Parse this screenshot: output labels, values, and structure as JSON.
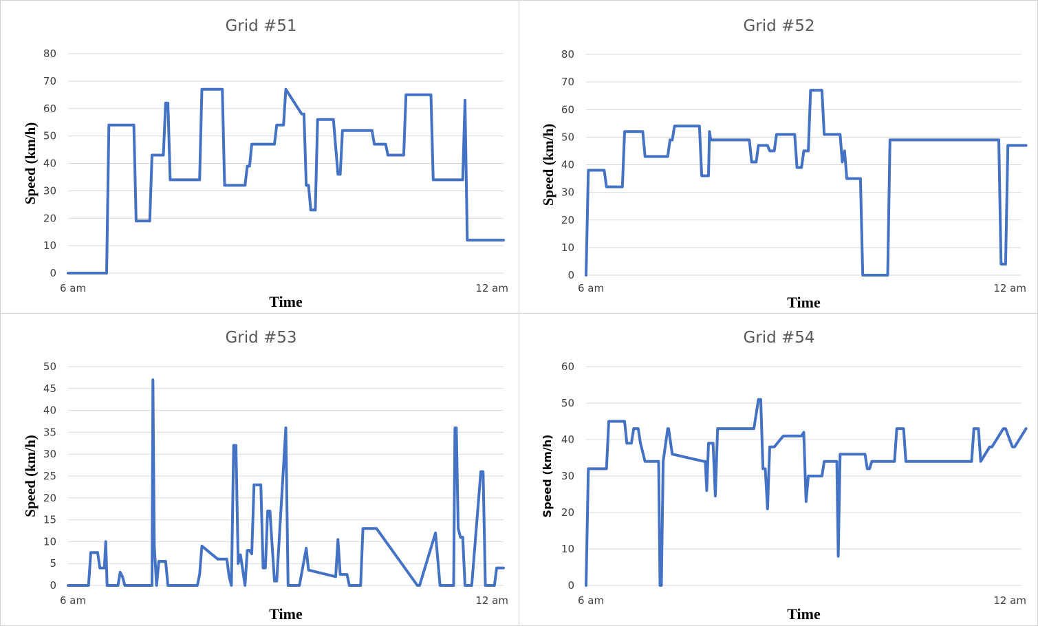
{
  "colors": {
    "series": "#4472C4",
    "grid": "#D9D9D9"
  },
  "chart_data": [
    {
      "type": "line",
      "title": "Grid #51",
      "xlabel": "Time",
      "ylabel": "Speed (km/h)",
      "ylim": [
        0,
        80
      ],
      "yticks": [
        0,
        10,
        20,
        30,
        40,
        50,
        60,
        70,
        80
      ],
      "xtick_labels": [
        "6 am",
        "12 am"
      ],
      "x": [
        0,
        8.5,
        9,
        14.5,
        15,
        18,
        18.5,
        21,
        21.5,
        22,
        22.5,
        23.5,
        24,
        29,
        29.5,
        34,
        34.5,
        39,
        39.5,
        40,
        40.5,
        41,
        41.5,
        45.5,
        46,
        47.5,
        48,
        51.5,
        52,
        52.5,
        53,
        53.5,
        54.5,
        55,
        58,
        58.5,
        59.5,
        60,
        60.5,
        67,
        67.5,
        70,
        70.5,
        74,
        74.5,
        80,
        80.5,
        87,
        87.5,
        88,
        88.5,
        91,
        91.5,
        94.5,
        95,
        96
      ],
      "y": [
        0,
        0,
        54,
        54,
        19,
        19,
        43,
        43,
        62,
        62,
        34,
        34,
        34,
        34,
        67,
        67,
        32,
        32,
        39,
        39,
        47,
        47,
        47,
        47,
        54,
        54,
        67,
        58,
        58,
        32,
        32,
        23,
        23,
        56,
        56,
        56,
        36,
        36,
        52,
        52,
        47,
        47,
        43,
        43,
        65,
        65,
        34,
        34,
        63,
        12,
        12,
        12,
        12,
        12,
        12,
        12
      ]
    },
    {
      "type": "line",
      "title": "Grid #52",
      "xlabel": "Time",
      "ylabel": "Speed (km/h)",
      "ylim": [
        0,
        80
      ],
      "yticks": [
        0,
        10,
        20,
        30,
        40,
        50,
        60,
        70,
        80
      ],
      "xtick_labels": [
        "6 am",
        "12 am"
      ],
      "x": [
        0,
        0.5,
        4,
        4.5,
        8,
        8.5,
        12.5,
        13,
        18,
        18.5,
        19,
        19.5,
        25,
        25.5,
        27,
        27.2,
        27.5,
        36,
        36.5,
        37.5,
        38,
        40,
        40.5,
        41.5,
        42,
        46,
        46.5,
        47.5,
        48,
        49,
        49.5,
        52,
        52.5,
        56,
        56.5,
        57,
        57.5,
        60.5,
        61,
        66,
        66.5,
        67,
        73.5,
        74,
        91,
        91.5,
        92.5,
        93,
        97
      ],
      "y": [
        0,
        38,
        38,
        32,
        32,
        52,
        52,
        43,
        43,
        49,
        49,
        54,
        54,
        36,
        36,
        52,
        49,
        49,
        41,
        41,
        47,
        47,
        45,
        45,
        51,
        51,
        39,
        39,
        45,
        45,
        67,
        67,
        51,
        51,
        41,
        45,
        35,
        35,
        0,
        0,
        0,
        49,
        49,
        49,
        49,
        4,
        4,
        47,
        47
      ]
    },
    {
      "type": "line",
      "title": "Grid #53",
      "xlabel": "Time",
      "ylabel": "Speed (km/h)",
      "ylim": [
        0,
        50
      ],
      "yticks": [
        0,
        5,
        10,
        15,
        20,
        25,
        30,
        35,
        40,
        45,
        50
      ],
      "xtick_labels": [
        "6 am",
        "12 am"
      ],
      "x": [
        0,
        4.5,
        5,
        6.5,
        7,
        8,
        8.3,
        8.6,
        9,
        11,
        11.5,
        12,
        12.5,
        13.5,
        18.5,
        18.7,
        19,
        19.5,
        20,
        21.5,
        22,
        22.5,
        28,
        28.5,
        29,
        29.5,
        33,
        33.5,
        34,
        35,
        35.5,
        36,
        36.5,
        37,
        37.5,
        38,
        39,
        39.5,
        40,
        40.5,
        41,
        42.5,
        43,
        43.5,
        44,
        44.5,
        45.5,
        46,
        48,
        48.5,
        49,
        49.5,
        50.5,
        51,
        52.5,
        53,
        59,
        59.5,
        60,
        61.5,
        62,
        64,
        64.5,
        65,
        68,
        77,
        77.5,
        81,
        82,
        85,
        85.3,
        85.6,
        86,
        86.5,
        87,
        87.5,
        88,
        89,
        91,
        91.5,
        92,
        94,
        94.5,
        95.5,
        96
      ],
      "y": [
        0,
        0,
        7.5,
        7.5,
        4,
        4,
        10,
        0,
        0,
        0,
        3,
        2,
        0,
        0,
        0,
        47,
        9,
        0,
        5.5,
        5.5,
        0,
        0,
        0,
        0,
        2.5,
        9,
        6,
        6,
        6,
        6,
        2,
        0,
        32,
        32,
        5,
        7,
        0,
        8,
        8,
        7.2,
        23,
        23,
        4,
        4,
        17,
        17,
        1,
        1,
        36,
        0,
        0,
        0,
        0,
        0,
        8.5,
        3.5,
        2,
        10.5,
        2.5,
        2.5,
        0,
        0,
        0,
        13,
        13,
        0,
        0,
        12,
        0,
        0,
        36,
        36,
        13,
        11,
        11,
        0,
        0,
        0,
        26,
        26,
        0,
        0,
        4,
        4,
        4
      ]
    },
    {
      "type": "line",
      "title": "Grid #54",
      "xlabel": "Time",
      "ylabel": "Speed (km/h)",
      "ylim": [
        0,
        60
      ],
      "yticks": [
        0,
        10,
        20,
        30,
        40,
        50,
        60
      ],
      "xtick_labels": [
        "6 am",
        "12 am"
      ],
      "x": [
        0,
        0.5,
        4.5,
        5,
        8.5,
        9,
        10,
        10.5,
        11.5,
        12,
        13,
        16,
        16.3,
        16.6,
        17,
        18,
        18.2,
        19,
        26,
        26.3,
        26.6,
        27,
        28,
        28.5,
        29,
        36.5,
        37,
        38,
        38.5,
        39,
        39.5,
        40,
        40.5,
        41,
        41.5,
        43.5,
        44,
        47.5,
        48,
        48.5,
        49,
        52,
        52.5,
        55,
        55.3,
        55.6,
        56,
        59,
        59.5,
        61.5,
        62,
        62.5,
        63,
        68,
        68.5,
        70,
        70.5,
        77,
        77.5,
        85,
        85.5,
        86.5,
        87,
        89,
        89.5,
        92,
        92.5,
        94,
        94.5,
        97
      ],
      "y": [
        0,
        32,
        32,
        45,
        45,
        39,
        39,
        43,
        43,
        39,
        34,
        34,
        0,
        0,
        34,
        43,
        43,
        36,
        34,
        34,
        26,
        39,
        39,
        24.5,
        43,
        43,
        43,
        51,
        51,
        32,
        32,
        21,
        38,
        38,
        38,
        41,
        41,
        41,
        42,
        23,
        30,
        30,
        34,
        34,
        34,
        8,
        36,
        36,
        36,
        36,
        32,
        32,
        34,
        34,
        43,
        43,
        34,
        34,
        34,
        34,
        43,
        43,
        34,
        38,
        38,
        43,
        43,
        38,
        38,
        43
      ]
    }
  ]
}
